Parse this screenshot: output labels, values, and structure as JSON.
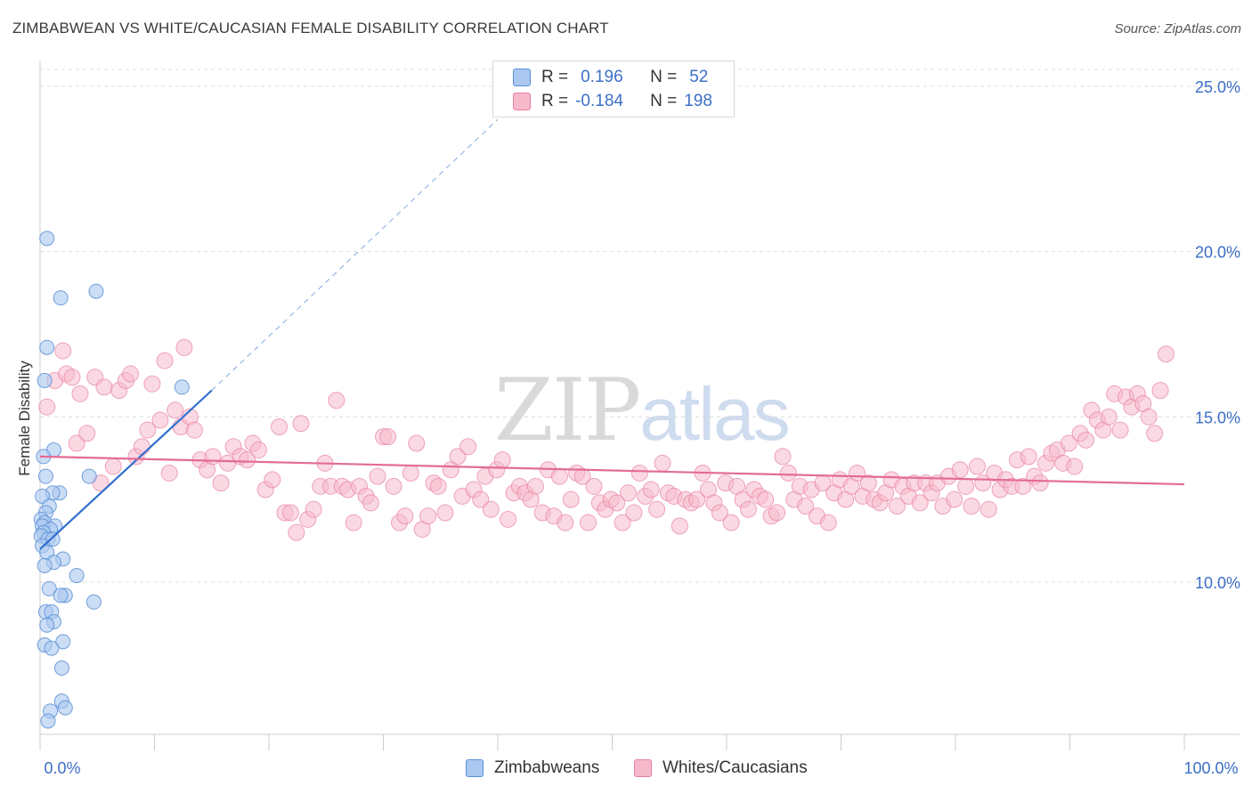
{
  "header": {
    "title": "ZIMBABWEAN VS WHITE/CAUCASIAN FEMALE DISABILITY CORRELATION CHART",
    "source": "Source: ZipAtlas.com"
  },
  "watermark": {
    "zip": "ZIP",
    "atlas": "atlas"
  },
  "legend": {
    "rows": [
      {
        "r_label": "R =",
        "r_value": "0.196",
        "n_label": "N =",
        "n_value": "52"
      },
      {
        "r_label": "R =",
        "r_value": "-0.184",
        "n_label": "N =",
        "n_value": "198"
      }
    ]
  },
  "bottom_legend": {
    "items": [
      "Zimbabweans",
      "Whites/Caucasians"
    ]
  },
  "colors": {
    "blue_fill": "#aac8f0",
    "blue_stroke": "#5b8fd6",
    "blue_line": "#2f6fd0",
    "pink_fill": "#f6b9cc",
    "pink_stroke": "#e8809f",
    "pink_line": "#e36c95",
    "accent_text": "#3b6fc6",
    "grid": "#dddddd"
  },
  "chart_data": {
    "type": "scatter",
    "title": "ZIMBABWEAN VS WHITE/CAUCASIAN FEMALE DISABILITY CORRELATION CHART",
    "xlabel": "",
    "ylabel": "Female Disability",
    "xlim": [
      0,
      100
    ],
    "ylim": [
      5.5,
      25.8
    ],
    "x_tick_labels": [
      "0.0%",
      "100.0%"
    ],
    "y_ticks": [
      10,
      15,
      20,
      25
    ],
    "y_tick_labels": [
      "10.0%",
      "15.0%",
      "20.0%",
      "25.0%"
    ],
    "grid": true,
    "legend_position": "top-center",
    "series": [
      {
        "name": "Zimbabweans",
        "R": 0.196,
        "N": 52,
        "trend": {
          "x": [
            0,
            15
          ],
          "y": [
            11.0,
            15.8
          ],
          "extended_to": [
            40,
            24.0
          ]
        },
        "points": [
          [
            0.6,
            20.4
          ],
          [
            1.8,
            18.6
          ],
          [
            4.9,
            18.8
          ],
          [
            0.6,
            17.1
          ],
          [
            0.4,
            16.1
          ],
          [
            12.4,
            15.9
          ],
          [
            1.2,
            14.0
          ],
          [
            0.3,
            13.8
          ],
          [
            4.3,
            13.2
          ],
          [
            0.5,
            13.2
          ],
          [
            1.7,
            12.7
          ],
          [
            1.1,
            12.7
          ],
          [
            0.2,
            12.6
          ],
          [
            0.8,
            12.3
          ],
          [
            0.5,
            12.1
          ],
          [
            0.1,
            11.9
          ],
          [
            0.4,
            11.8
          ],
          [
            0.2,
            11.7
          ],
          [
            1.3,
            11.7
          ],
          [
            0.9,
            11.6
          ],
          [
            0.3,
            11.5
          ],
          [
            0.1,
            11.4
          ],
          [
            0.7,
            11.3
          ],
          [
            1.1,
            11.3
          ],
          [
            0.2,
            11.1
          ],
          [
            0.6,
            10.9
          ],
          [
            2.0,
            10.7
          ],
          [
            1.2,
            10.6
          ],
          [
            0.4,
            10.5
          ],
          [
            3.2,
            10.2
          ],
          [
            0.8,
            9.8
          ],
          [
            2.2,
            9.6
          ],
          [
            1.8,
            9.6
          ],
          [
            4.7,
            9.4
          ],
          [
            0.5,
            9.1
          ],
          [
            1.0,
            9.1
          ],
          [
            1.2,
            8.8
          ],
          [
            0.6,
            8.7
          ],
          [
            2.0,
            8.2
          ],
          [
            0.4,
            8.1
          ],
          [
            1.0,
            8.0
          ],
          [
            1.9,
            7.4
          ],
          [
            1.9,
            6.4
          ],
          [
            2.2,
            6.2
          ],
          [
            0.9,
            6.1
          ],
          [
            0.7,
            5.8
          ]
        ]
      },
      {
        "name": "Whites/Caucasians",
        "R": -0.184,
        "N": 198,
        "trend": {
          "x": [
            0,
            100
          ],
          "y": [
            13.8,
            12.96
          ]
        },
        "points": [
          [
            0.6,
            15.3
          ],
          [
            1.3,
            16.1
          ],
          [
            2.0,
            17.0
          ],
          [
            2.3,
            16.3
          ],
          [
            2.8,
            16.2
          ],
          [
            3.2,
            14.2
          ],
          [
            3.5,
            15.7
          ],
          [
            4.1,
            14.5
          ],
          [
            4.8,
            16.2
          ],
          [
            5.3,
            13.0
          ],
          [
            5.6,
            15.9
          ],
          [
            6.4,
            13.5
          ],
          [
            6.9,
            15.8
          ],
          [
            7.5,
            16.1
          ],
          [
            7.9,
            16.3
          ],
          [
            8.4,
            13.8
          ],
          [
            8.9,
            14.1
          ],
          [
            9.4,
            14.6
          ],
          [
            9.8,
            16.0
          ],
          [
            10.5,
            14.9
          ],
          [
            10.9,
            16.7
          ],
          [
            11.3,
            13.3
          ],
          [
            11.8,
            15.2
          ],
          [
            12.3,
            14.7
          ],
          [
            12.6,
            17.1
          ],
          [
            13.1,
            15.0
          ],
          [
            13.5,
            14.6
          ],
          [
            14.0,
            13.7
          ],
          [
            14.6,
            13.4
          ],
          [
            15.1,
            13.8
          ],
          [
            15.8,
            13.0
          ],
          [
            16.4,
            13.6
          ],
          [
            16.9,
            14.1
          ],
          [
            17.5,
            13.8
          ],
          [
            18.1,
            13.7
          ],
          [
            18.6,
            14.2
          ],
          [
            19.1,
            14.0
          ],
          [
            19.7,
            12.8
          ],
          [
            20.3,
            13.1
          ],
          [
            20.9,
            14.7
          ],
          [
            21.4,
            12.1
          ],
          [
            21.9,
            12.1
          ],
          [
            22.4,
            11.5
          ],
          [
            22.8,
            14.8
          ],
          [
            23.4,
            11.9
          ],
          [
            23.9,
            12.2
          ],
          [
            24.5,
            12.9
          ],
          [
            24.9,
            13.6
          ],
          [
            25.4,
            12.9
          ],
          [
            25.9,
            15.5
          ],
          [
            26.4,
            12.9
          ],
          [
            26.9,
            12.8
          ],
          [
            27.4,
            11.8
          ],
          [
            27.9,
            12.9
          ],
          [
            28.5,
            12.6
          ],
          [
            28.9,
            12.4
          ],
          [
            29.5,
            13.2
          ],
          [
            30.0,
            14.4
          ],
          [
            30.4,
            14.4
          ],
          [
            30.9,
            12.9
          ],
          [
            31.4,
            11.8
          ],
          [
            31.9,
            12.0
          ],
          [
            32.4,
            13.3
          ],
          [
            32.9,
            14.2
          ],
          [
            33.4,
            11.6
          ],
          [
            33.9,
            12.0
          ],
          [
            34.4,
            13.0
          ],
          [
            34.8,
            12.9
          ],
          [
            35.4,
            12.1
          ],
          [
            35.9,
            13.4
          ],
          [
            36.5,
            13.8
          ],
          [
            36.9,
            12.6
          ],
          [
            37.4,
            14.1
          ],
          [
            37.9,
            12.8
          ],
          [
            38.5,
            12.5
          ],
          [
            38.9,
            13.2
          ],
          [
            39.4,
            12.2
          ],
          [
            39.9,
            13.4
          ],
          [
            40.4,
            13.7
          ],
          [
            40.9,
            11.9
          ],
          [
            41.4,
            12.7
          ],
          [
            41.9,
            12.9
          ],
          [
            42.4,
            12.7
          ],
          [
            42.9,
            12.5
          ],
          [
            43.3,
            12.9
          ],
          [
            43.9,
            12.1
          ],
          [
            44.4,
            13.4
          ],
          [
            44.9,
            12.0
          ],
          [
            45.4,
            13.2
          ],
          [
            45.9,
            11.8
          ],
          [
            46.4,
            12.5
          ],
          [
            46.9,
            13.3
          ],
          [
            47.4,
            13.2
          ],
          [
            47.9,
            11.8
          ],
          [
            48.4,
            12.9
          ],
          [
            48.9,
            12.4
          ],
          [
            49.4,
            12.2
          ],
          [
            49.9,
            12.5
          ],
          [
            50.4,
            12.4
          ],
          [
            50.9,
            11.8
          ],
          [
            51.4,
            12.7
          ],
          [
            51.9,
            12.1
          ],
          [
            52.4,
            13.3
          ],
          [
            52.9,
            12.6
          ],
          [
            53.4,
            12.8
          ],
          [
            53.9,
            12.2
          ],
          [
            54.4,
            13.6
          ],
          [
            54.9,
            12.7
          ],
          [
            55.4,
            12.6
          ],
          [
            55.9,
            11.7
          ],
          [
            56.4,
            12.5
          ],
          [
            56.9,
            12.4
          ],
          [
            57.4,
            12.5
          ],
          [
            57.9,
            13.3
          ],
          [
            58.4,
            12.8
          ],
          [
            58.9,
            12.4
          ],
          [
            59.4,
            12.1
          ],
          [
            59.9,
            13.0
          ],
          [
            60.4,
            11.8
          ],
          [
            60.9,
            12.9
          ],
          [
            61.4,
            12.5
          ],
          [
            61.9,
            12.2
          ],
          [
            62.4,
            12.8
          ],
          [
            62.9,
            12.6
          ],
          [
            63.4,
            12.5
          ],
          [
            63.9,
            12.0
          ],
          [
            64.4,
            12.1
          ],
          [
            64.9,
            13.8
          ],
          [
            65.4,
            13.3
          ],
          [
            65.9,
            12.5
          ],
          [
            66.4,
            12.9
          ],
          [
            66.9,
            12.3
          ],
          [
            67.4,
            12.8
          ],
          [
            67.9,
            12.0
          ],
          [
            68.4,
            13.0
          ],
          [
            68.9,
            11.8
          ],
          [
            69.4,
            12.7
          ],
          [
            69.9,
            13.1
          ],
          [
            70.4,
            12.5
          ],
          [
            70.9,
            12.9
          ],
          [
            71.4,
            13.3
          ],
          [
            71.9,
            12.6
          ],
          [
            72.4,
            13.0
          ],
          [
            72.9,
            12.5
          ],
          [
            73.4,
            12.4
          ],
          [
            73.9,
            12.7
          ],
          [
            74.4,
            13.1
          ],
          [
            74.9,
            12.3
          ],
          [
            75.4,
            12.9
          ],
          [
            75.9,
            12.6
          ],
          [
            76.4,
            13.0
          ],
          [
            76.9,
            12.4
          ],
          [
            77.4,
            13.0
          ],
          [
            77.9,
            12.7
          ],
          [
            78.4,
            13.0
          ],
          [
            78.9,
            12.3
          ],
          [
            79.4,
            13.2
          ],
          [
            79.9,
            12.5
          ],
          [
            80.4,
            13.4
          ],
          [
            80.9,
            12.9
          ],
          [
            81.4,
            12.3
          ],
          [
            81.9,
            13.5
          ],
          [
            82.4,
            13.0
          ],
          [
            82.9,
            12.2
          ],
          [
            83.4,
            13.3
          ],
          [
            83.9,
            12.8
          ],
          [
            84.4,
            13.1
          ],
          [
            84.9,
            12.9
          ],
          [
            85.4,
            13.7
          ],
          [
            85.9,
            12.9
          ],
          [
            86.4,
            13.8
          ],
          [
            86.9,
            13.2
          ],
          [
            87.4,
            13.0
          ],
          [
            87.9,
            13.6
          ],
          [
            88.4,
            13.9
          ],
          [
            88.9,
            14.0
          ],
          [
            89.4,
            13.6
          ],
          [
            89.9,
            14.2
          ],
          [
            90.4,
            13.5
          ],
          [
            90.9,
            14.5
          ],
          [
            91.4,
            14.3
          ],
          [
            91.9,
            15.2
          ],
          [
            92.4,
            14.9
          ],
          [
            92.9,
            14.6
          ],
          [
            93.4,
            15.0
          ],
          [
            93.9,
            15.7
          ],
          [
            94.4,
            14.6
          ],
          [
            94.9,
            15.6
          ],
          [
            95.4,
            15.3
          ],
          [
            95.9,
            15.7
          ],
          [
            96.4,
            15.4
          ],
          [
            96.9,
            15.0
          ],
          [
            97.4,
            14.5
          ],
          [
            97.9,
            15.8
          ],
          [
            98.4,
            16.9
          ]
        ]
      }
    ]
  }
}
